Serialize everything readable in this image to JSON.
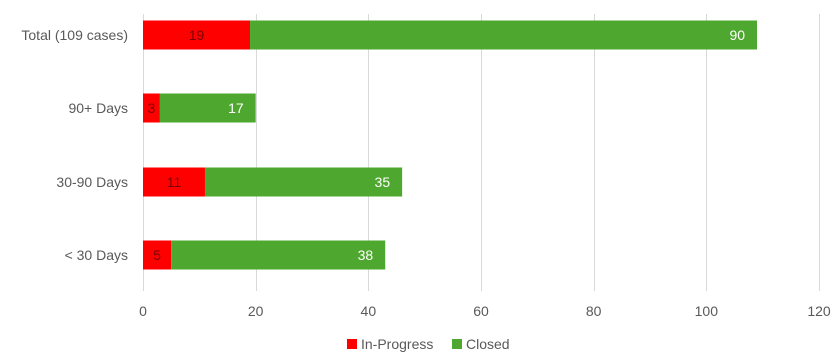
{
  "chart_data": {
    "type": "bar",
    "orientation": "horizontal",
    "stacked": true,
    "title": "",
    "xlabel": "",
    "ylabel": "",
    "categories": [
      "Total (109 cases)",
      "90+ Days",
      "30-90 Days",
      "< 30 Days"
    ],
    "series": [
      {
        "name": "In-Progress",
        "color": "#ff0000",
        "label_color": "#7f0000",
        "values": [
          19,
          3,
          11,
          5
        ]
      },
      {
        "name": "Closed",
        "color": "#4ea72e",
        "label_color": "#ffffff",
        "values": [
          90,
          17,
          35,
          38
        ]
      }
    ],
    "xlim": [
      0,
      120
    ],
    "xticks": [
      0,
      20,
      40,
      60,
      80,
      100,
      120
    ],
    "grid": "vertical",
    "gridline_color": "#d9d9d9",
    "legend_position": "bottom",
    "data_labels": true
  }
}
